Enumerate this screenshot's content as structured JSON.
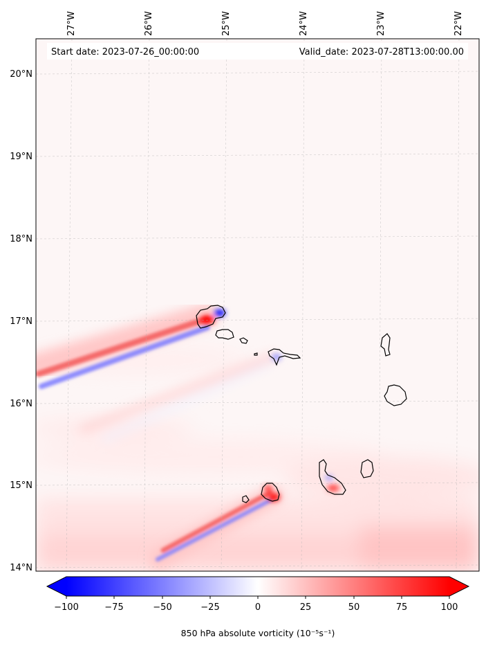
{
  "map": {
    "start_label": "Start date: 2023-07-26_00:00:00",
    "valid_label": "Valid_date: 2023-07-28T13:00:00.00",
    "lon_ticks": [
      "27°W",
      "26°W",
      "25°W",
      "24°W",
      "23°W",
      "22°W"
    ],
    "lat_ticks": [
      "20°N",
      "19°N",
      "18°N",
      "17°N",
      "16°N",
      "15°N",
      "14°N"
    ],
    "lon_range": [
      -27.38,
      -21.74
    ],
    "lat_range": [
      13.95,
      20.42
    ],
    "gridlines": true,
    "coastlines": [
      "Santo Antão",
      "São Vicente",
      "Santa Luzia",
      "Branco",
      "Raso",
      "São Nicolau",
      "Sal",
      "Boa Vista",
      "Maio",
      "Santiago",
      "Fogo",
      "Brava"
    ]
  },
  "colorbar": {
    "label": "850 hPa absolute vorticity (10⁻⁵s⁻¹)",
    "ticks": [
      "−100",
      "−75",
      "−50",
      "−25",
      "0",
      "25",
      "50",
      "75",
      "100"
    ],
    "range": [
      -100,
      100
    ],
    "extend": "both",
    "cmap": "bwr",
    "color_low": "#0000ff",
    "color_mid": "#ffffff",
    "color_high": "#ff0000"
  }
}
